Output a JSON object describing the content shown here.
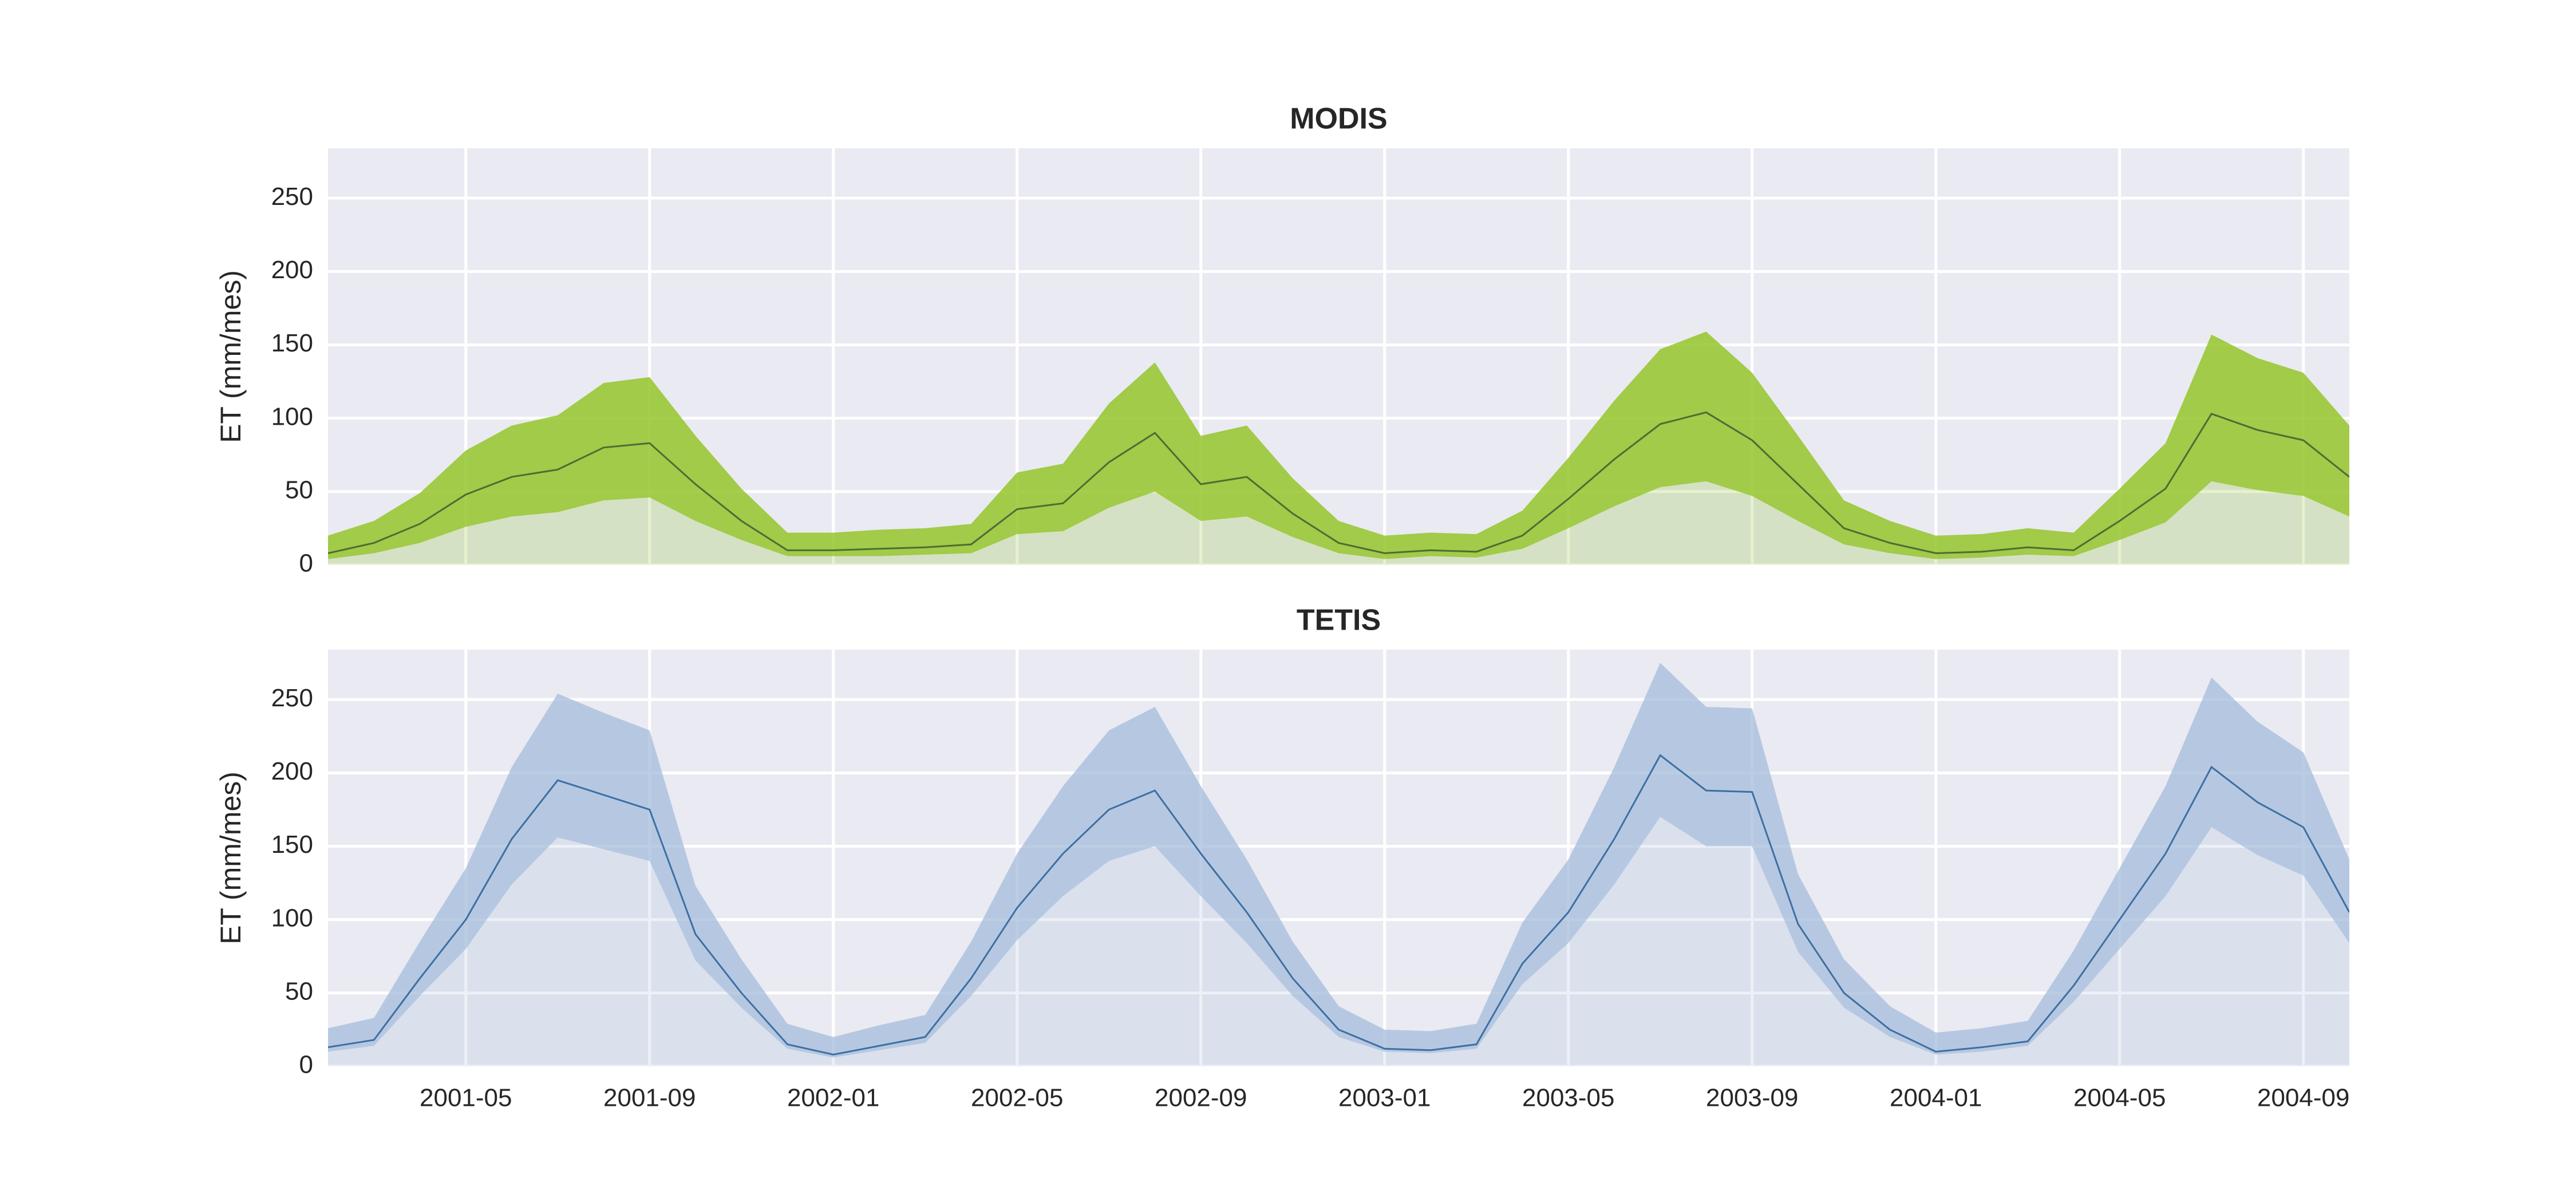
{
  "chart_data": [
    {
      "type": "line",
      "title": "MODIS",
      "ylabel": "ET (mm/mes)",
      "x": [
        "2001-02",
        "2001-03",
        "2001-04",
        "2001-05",
        "2001-06",
        "2001-07",
        "2001-08",
        "2001-09",
        "2001-10",
        "2001-11",
        "2001-12",
        "2002-01",
        "2002-02",
        "2002-03",
        "2002-04",
        "2002-05",
        "2002-06",
        "2002-07",
        "2002-08",
        "2002-09",
        "2002-10",
        "2002-11",
        "2002-12",
        "2003-01",
        "2003-02",
        "2003-03",
        "2003-04",
        "2003-05",
        "2003-06",
        "2003-07",
        "2003-08",
        "2003-09",
        "2003-10",
        "2003-11",
        "2003-12",
        "2004-01",
        "2004-02",
        "2004-03",
        "2004-04",
        "2004-05",
        "2004-06",
        "2004-07",
        "2004-08",
        "2004-09",
        "2004-10"
      ],
      "values": [
        8,
        15,
        28,
        48,
        60,
        65,
        80,
        83,
        55,
        30,
        10,
        10,
        11,
        12,
        14,
        38,
        42,
        70,
        90,
        55,
        60,
        35,
        15,
        8,
        10,
        9,
        20,
        45,
        72,
        96,
        104,
        85,
        55,
        25,
        15,
        8,
        9,
        12,
        10,
        30,
        52,
        103,
        92,
        85,
        60
      ],
      "upper": [
        20,
        30,
        49,
        78,
        95,
        102,
        124,
        128,
        88,
        52,
        22,
        22,
        24,
        25,
        28,
        63,
        69,
        110,
        138,
        88,
        95,
        59,
        30,
        20,
        22,
        21,
        37,
        73,
        112,
        147,
        159,
        131,
        88,
        44,
        30,
        20,
        21,
        25,
        22,
        52,
        83,
        157,
        141,
        131,
        95
      ],
      "lower": [
        4,
        8,
        15,
        26,
        33,
        36,
        44,
        46,
        30,
        17,
        6,
        6,
        6,
        7,
        8,
        21,
        23,
        39,
        50,
        30,
        33,
        19,
        8,
        4,
        6,
        5,
        11,
        25,
        40,
        53,
        57,
        47,
        30,
        14,
        8,
        4,
        5,
        7,
        6,
        17,
        29,
        57,
        51,
        47,
        33
      ],
      "color": "#4f6b35",
      "band_color": "#8fc31f",
      "xlim": [
        "2001-02",
        "2004-10"
      ],
      "xticks": [
        "2001-05",
        "2001-09",
        "2002-01",
        "2002-05",
        "2002-09",
        "2003-01",
        "2003-05",
        "2003-09",
        "2004-01",
        "2004-05",
        "2004-09"
      ],
      "ylim": [
        0,
        284
      ],
      "yticks": [
        0,
        50,
        100,
        150,
        200,
        250
      ],
      "grid": true
    },
    {
      "type": "line",
      "title": "TETIS",
      "ylabel": "ET (mm/mes)",
      "x": [
        "2001-02",
        "2001-03",
        "2001-04",
        "2001-05",
        "2001-06",
        "2001-07",
        "2001-08",
        "2001-09",
        "2001-10",
        "2001-11",
        "2001-12",
        "2002-01",
        "2002-02",
        "2002-03",
        "2002-04",
        "2002-05",
        "2002-06",
        "2002-07",
        "2002-08",
        "2002-09",
        "2002-10",
        "2002-11",
        "2002-12",
        "2003-01",
        "2003-02",
        "2003-03",
        "2003-04",
        "2003-05",
        "2003-06",
        "2003-07",
        "2003-08",
        "2003-09",
        "2003-10",
        "2003-11",
        "2003-12",
        "2004-01",
        "2004-02",
        "2004-03",
        "2004-04",
        "2004-05",
        "2004-06",
        "2004-07",
        "2004-08",
        "2004-09",
        "2004-10"
      ],
      "values": [
        13,
        18,
        60,
        100,
        155,
        195,
        185,
        175,
        90,
        50,
        15,
        8,
        14,
        20,
        60,
        108,
        145,
        175,
        188,
        145,
        105,
        60,
        25,
        12,
        11,
        15,
        70,
        105,
        155,
        212,
        188,
        187,
        97,
        50,
        25,
        10,
        13,
        17,
        55,
        100,
        145,
        204,
        180,
        163,
        105
      ],
      "upper": [
        26,
        33,
        85,
        135,
        204,
        254,
        241,
        229,
        123,
        73,
        29,
        20,
        28,
        35,
        85,
        145,
        191,
        229,
        245,
        191,
        141,
        85,
        41,
        25,
        24,
        29,
        98,
        141,
        204,
        275,
        245,
        244,
        131,
        73,
        41,
        23,
        26,
        31,
        79,
        135,
        191,
        265,
        235,
        214,
        141
      ],
      "lower": [
        10,
        14,
        48,
        80,
        124,
        156,
        148,
        140,
        72,
        40,
        12,
        6,
        11,
        16,
        48,
        86,
        116,
        140,
        150,
        116,
        84,
        48,
        20,
        10,
        9,
        12,
        56,
        84,
        124,
        170,
        150,
        150,
        78,
        40,
        20,
        8,
        10,
        14,
        44,
        80,
        116,
        163,
        144,
        130,
        84
      ],
      "color": "#3d6fa3",
      "band_color": "#a9c0dc",
      "xlim": [
        "2001-02",
        "2004-10"
      ],
      "xticks": [
        "2001-05",
        "2001-09",
        "2002-01",
        "2002-05",
        "2002-09",
        "2003-01",
        "2003-05",
        "2003-09",
        "2004-01",
        "2004-05",
        "2004-09"
      ],
      "ylim": [
        0,
        284
      ],
      "yticks": [
        0,
        50,
        100,
        150,
        200,
        250
      ],
      "grid": true
    }
  ]
}
